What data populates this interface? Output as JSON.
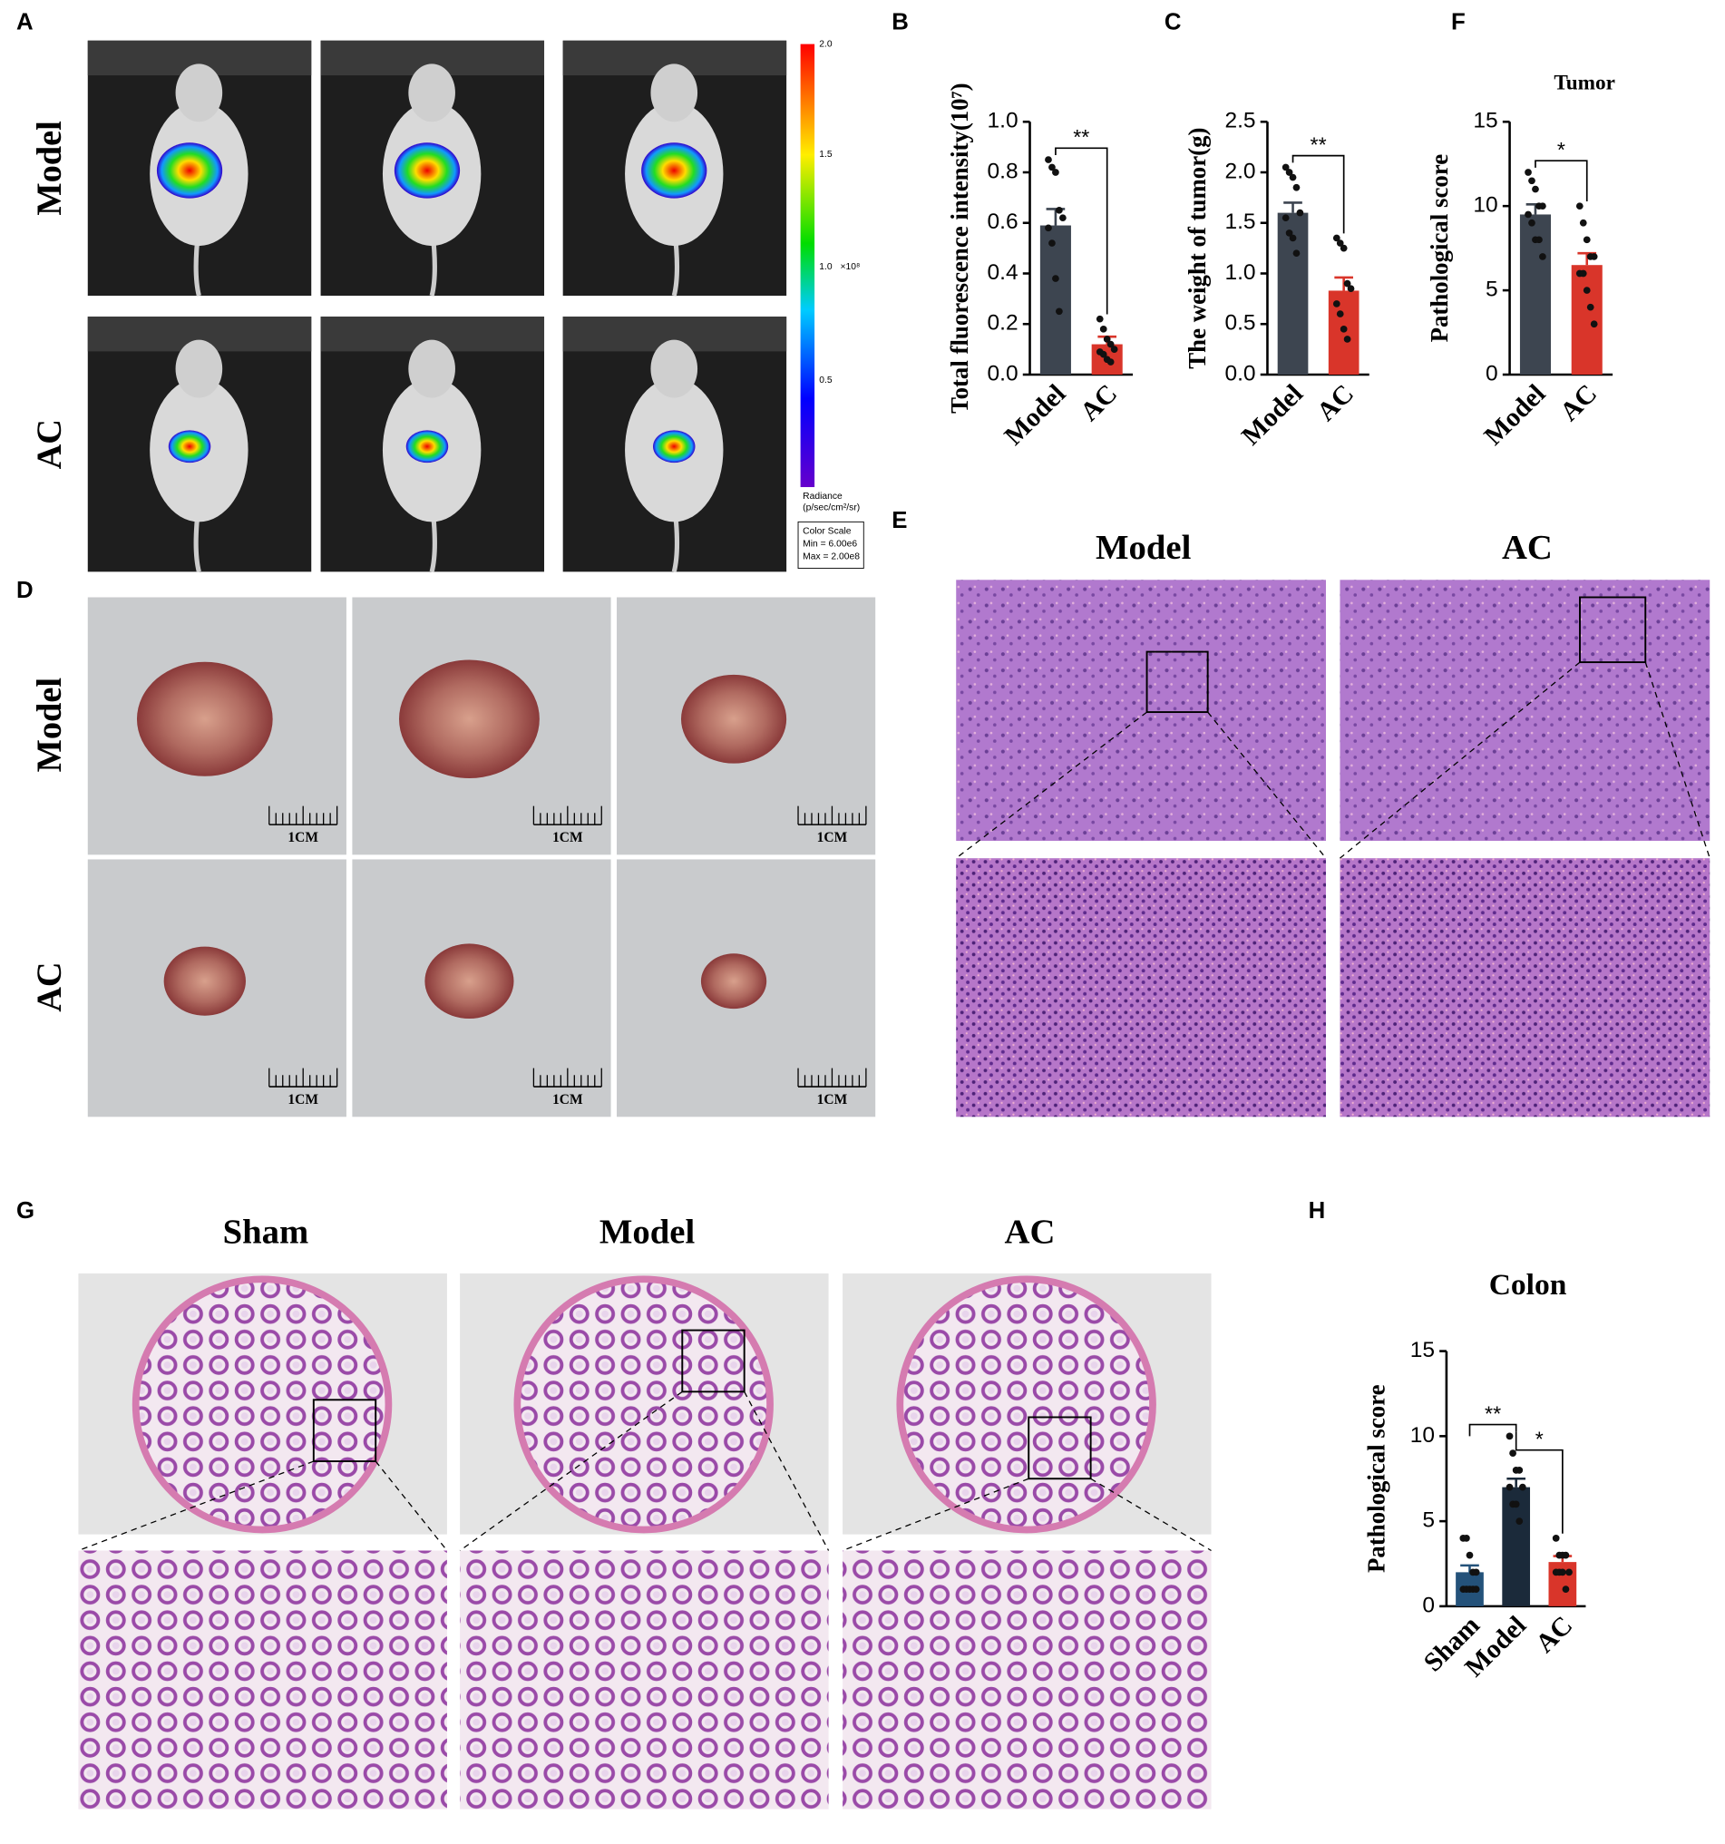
{
  "panel_labels": [
    "A",
    "B",
    "C",
    "D",
    "E",
    "F",
    "G",
    "H"
  ],
  "panel_a": {
    "rows": [
      "Model",
      "AC"
    ],
    "colorbar": {
      "ticks": [
        "2.0",
        "1.5",
        "1.0",
        "0.5"
      ],
      "exponent": "×10⁸",
      "radiance": "Radiance",
      "units": "(p/sec/cm²/sr)",
      "scale_title": "Color Scale",
      "min": "Min = 6.00e6",
      "max": "Max = 2.00e8"
    }
  },
  "panel_d": {
    "rows": [
      "Model",
      "AC"
    ],
    "scale_label": "1CM"
  },
  "panel_e": {
    "columns": [
      "Model",
      "AC"
    ]
  },
  "panel_g": {
    "columns": [
      "Sham",
      "Model",
      "AC"
    ]
  },
  "chart_data": [
    {
      "type": "bar",
      "ylabel": "Total fluorescence intensity(10⁷)",
      "categories": [
        "Model",
        "AC"
      ],
      "values": [
        0.59,
        0.12
      ],
      "errors": [
        0.065,
        0.03
      ],
      "colors": [
        "#3d4550",
        "#d9352a"
      ],
      "points": [
        [
          0.85,
          0.82,
          0.8,
          0.65,
          0.62,
          0.58,
          0.52,
          0.38,
          0.25
        ],
        [
          0.22,
          0.18,
          0.14,
          0.12,
          0.1,
          0.09,
          0.08,
          0.06,
          0.05
        ]
      ],
      "ylim": [
        0,
        1
      ],
      "yticks": [
        {
          "value": 0,
          "label": "0.0"
        },
        0.2,
        0.4,
        0.6,
        0.8,
        {
          "value": 1,
          "label": "1.0"
        }
      ],
      "significance": [
        {
          "label": "**"
        }
      ]
    },
    {
      "type": "bar",
      "ylabel": "The weight of tumor(g)",
      "categories": [
        "Model",
        "AC"
      ],
      "values": [
        1.6,
        0.83
      ],
      "errors": [
        0.1,
        0.13
      ],
      "colors": [
        "#3d4550",
        "#d9352a"
      ],
      "points": [
        [
          2.05,
          2.0,
          1.95,
          1.85,
          1.6,
          1.55,
          1.4,
          1.35,
          1.2
        ],
        [
          1.35,
          1.3,
          1.25,
          0.9,
          0.85,
          0.7,
          0.6,
          0.45,
          0.35
        ]
      ],
      "ylim": [
        0,
        2.5
      ],
      "yticks": [
        {
          "value": 0,
          "label": "0.0"
        },
        0.5,
        {
          "value": 1,
          "label": "1.0"
        },
        1.5,
        {
          "value": 2,
          "label": "2.0"
        },
        2.5
      ],
      "significance": [
        {
          "label": "**"
        }
      ]
    },
    {
      "type": "bar",
      "title": "Tumor",
      "ylabel": "Pathological score",
      "categories": [
        "Model",
        "AC"
      ],
      "values": [
        9.5,
        6.5
      ],
      "errors": [
        0.6,
        0.7
      ],
      "colors": [
        "#3d4550",
        "#d9352a"
      ],
      "points": [
        [
          12,
          11.5,
          11,
          10,
          10,
          9.5,
          9,
          8,
          8,
          7
        ],
        [
          10,
          9,
          8,
          7,
          7,
          6,
          6,
          5,
          4,
          3
        ]
      ],
      "ylim": [
        0,
        15
      ],
      "yticks": [
        0,
        5,
        10,
        15
      ],
      "significance": [
        {
          "label": "*"
        }
      ]
    },
    {
      "type": "bar",
      "title": "Colon",
      "ylabel": "Pathological score",
      "categories": [
        "Sham",
        "Model",
        "AC"
      ],
      "values": [
        2,
        7,
        2.6
      ],
      "errors": [
        0.4,
        0.5,
        0.35
      ],
      "colors": [
        "#24527a",
        "#1b2a3a",
        "#d9352a"
      ],
      "points": [
        [
          4,
          4,
          3,
          2,
          2,
          1,
          1,
          1,
          1,
          1
        ],
        [
          10,
          9,
          8,
          8,
          7,
          7,
          6,
          6,
          5
        ],
        [
          4,
          3,
          3,
          3,
          2,
          2,
          2,
          2,
          1
        ]
      ],
      "ylim": [
        0,
        15
      ],
      "yticks": [
        0,
        5,
        10,
        15
      ],
      "significance": [
        {
          "label": "**"
        },
        {
          "label": "*"
        }
      ]
    }
  ]
}
